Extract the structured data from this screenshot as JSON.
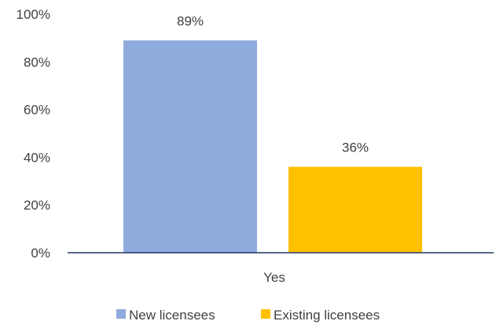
{
  "chart_data": {
    "type": "bar",
    "categories": [
      "Yes"
    ],
    "series": [
      {
        "name": "New licensees",
        "values": [
          89
        ],
        "color": "#8FAADC",
        "label": "89%"
      },
      {
        "name": "Existing licensees",
        "values": [
          36
        ],
        "color": "#FFC000",
        "label": "36%"
      }
    ],
    "ylim": [
      0,
      100
    ],
    "yticks": [
      {
        "value": 0,
        "label": "0%"
      },
      {
        "value": 20,
        "label": "20%"
      },
      {
        "value": 40,
        "label": "40%"
      },
      {
        "value": 60,
        "label": "60%"
      },
      {
        "value": 80,
        "label": "80%"
      },
      {
        "value": 100,
        "label": "100%"
      }
    ],
    "grid": false,
    "legend_position": "bottom",
    "axis_color": "#203864"
  }
}
